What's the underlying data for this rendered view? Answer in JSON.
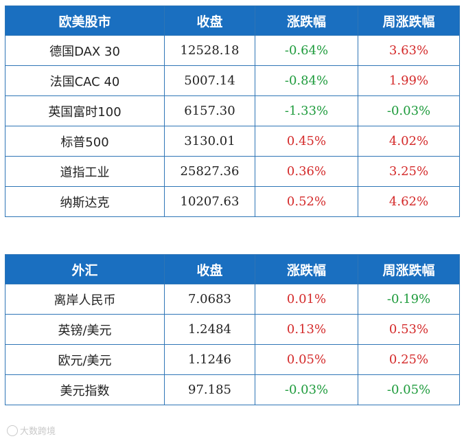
{
  "colors": {
    "header_bg": "#1a6fc0",
    "border": "#2e75b6",
    "up": "#d42a2a",
    "down": "#1e9b3c"
  },
  "equity_table": {
    "headers": [
      "欧美股市",
      "收盘",
      "涨跌幅",
      "周涨跌幅"
    ],
    "rows": [
      {
        "name": "德国DAX 30",
        "close": "12528.18",
        "change": "-0.64%",
        "change_dir": "down",
        "weekly": "3.63%",
        "weekly_dir": "up"
      },
      {
        "name": "法国CAC 40",
        "close": "5007.14",
        "change": "-0.84%",
        "change_dir": "down",
        "weekly": "1.99%",
        "weekly_dir": "up"
      },
      {
        "name": "英国富时100",
        "close": "6157.30",
        "change": "-1.33%",
        "change_dir": "down",
        "weekly": "-0.03%",
        "weekly_dir": "down"
      },
      {
        "name": "标普500",
        "close": "3130.01",
        "change": "0.45%",
        "change_dir": "up",
        "weekly": "4.02%",
        "weekly_dir": "up"
      },
      {
        "name": "道指工业",
        "close": "25827.36",
        "change": "0.36%",
        "change_dir": "up",
        "weekly": "3.25%",
        "weekly_dir": "up"
      },
      {
        "name": "纳斯达克",
        "close": "10207.63",
        "change": "0.52%",
        "change_dir": "up",
        "weekly": "4.62%",
        "weekly_dir": "up"
      }
    ]
  },
  "fx_table": {
    "headers": [
      "外汇",
      "收盘",
      "涨跌幅",
      "周涨跌幅"
    ],
    "rows": [
      {
        "name": "离岸人民币",
        "close": "7.0683",
        "change": "0.01%",
        "change_dir": "up",
        "weekly": "-0.19%",
        "weekly_dir": "down"
      },
      {
        "name": "英镑/美元",
        "close": "1.2484",
        "change": "0.13%",
        "change_dir": "up",
        "weekly": "0.53%",
        "weekly_dir": "up"
      },
      {
        "name": "欧元/美元",
        "close": "1.1246",
        "change": "0.05%",
        "change_dir": "up",
        "weekly": "0.25%",
        "weekly_dir": "up"
      },
      {
        "name": "美元指数",
        "close": "97.185",
        "change": "-0.03%",
        "change_dir": "down",
        "weekly": "-0.05%",
        "weekly_dir": "down"
      }
    ]
  },
  "watermark": {
    "text": "大数跨境",
    "icon": "logo-circle-icon"
  }
}
